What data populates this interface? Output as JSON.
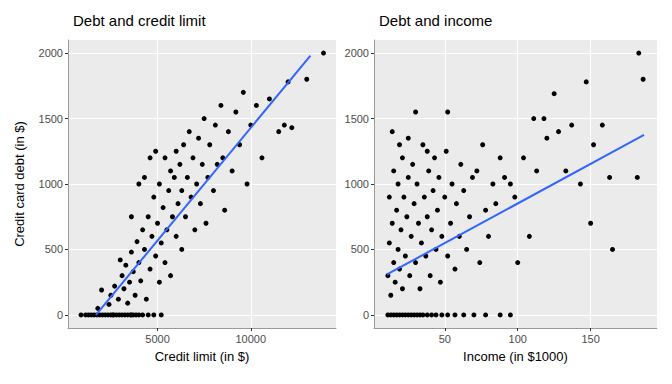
{
  "chart_data": [
    {
      "type": "scatter",
      "title": "Debt and credit limit",
      "x_label": "Credit limit (in $)",
      "y_label": "Credit card debt (in $)",
      "xlim": [
        200,
        14570
      ],
      "xticks": [
        5000,
        10000
      ],
      "ylim": [
        -100,
        2100
      ],
      "yticks": [
        0,
        500,
        1000,
        1500,
        2000
      ],
      "grid": true,
      "series": [
        {
          "type": "scatter",
          "color": "#000000",
          "marker": "circle",
          "values": [
            [
              900,
              0
            ],
            [
              1150,
              0
            ],
            [
              1300,
              0
            ],
            [
              1450,
              0
            ],
            [
              1600,
              0
            ],
            [
              1750,
              0
            ],
            [
              1900,
              0
            ],
            [
              2050,
              0
            ],
            [
              2200,
              0
            ],
            [
              2350,
              0
            ],
            [
              2500,
              0
            ],
            [
              2600,
              0
            ],
            [
              2650,
              0
            ],
            [
              2800,
              0
            ],
            [
              2950,
              0
            ],
            [
              3100,
              0
            ],
            [
              3250,
              0
            ],
            [
              3400,
              0
            ],
            [
              3550,
              0
            ],
            [
              3600,
              0
            ],
            [
              3700,
              0
            ],
            [
              3850,
              0
            ],
            [
              4000,
              0
            ],
            [
              4200,
              0
            ],
            [
              4500,
              0
            ],
            [
              4800,
              0
            ],
            [
              5200,
              0
            ],
            [
              1800,
              50
            ],
            [
              2000,
              190
            ],
            [
              2400,
              80
            ],
            [
              2500,
              150
            ],
            [
              2700,
              220
            ],
            [
              2900,
              120
            ],
            [
              3000,
              420
            ],
            [
              3100,
              300
            ],
            [
              3200,
              200
            ],
            [
              3300,
              380
            ],
            [
              3400,
              90
            ],
            [
              3500,
              250
            ],
            [
              3600,
              480
            ],
            [
              3600,
              750
            ],
            [
              3700,
              330
            ],
            [
              3800,
              150
            ],
            [
              3900,
              560
            ],
            [
              4000,
              400
            ],
            [
              4000,
              1000
            ],
            [
              4100,
              260
            ],
            [
              4200,
              650
            ],
            [
              4300,
              500
            ],
            [
              4300,
              1050
            ],
            [
              4400,
              120
            ],
            [
              4500,
              750
            ],
            [
              4600,
              350
            ],
            [
              4600,
              1200
            ],
            [
              4700,
              600
            ],
            [
              4800,
              900
            ],
            [
              4900,
              450
            ],
            [
              4900,
              1250
            ],
            [
              5000,
              700
            ],
            [
              5100,
              1000
            ],
            [
              5100,
              250
            ],
            [
              5200,
              550
            ],
            [
              5300,
              820
            ],
            [
              5400,
              1200
            ],
            [
              5400,
              400
            ],
            [
              5500,
              650
            ],
            [
              5600,
              950
            ],
            [
              5700,
              1100
            ],
            [
              5700,
              300
            ],
            [
              5800,
              750
            ],
            [
              5900,
              1050
            ],
            [
              6000,
              600
            ],
            [
              6000,
              1250
            ],
            [
              6100,
              850
            ],
            [
              6200,
              1150
            ],
            [
              6300,
              500
            ],
            [
              6300,
              950
            ],
            [
              6400,
              1300
            ],
            [
              6500,
              750
            ],
            [
              6600,
              1050
            ],
            [
              6700,
              1400
            ],
            [
              6800,
              900
            ],
            [
              6900,
              1200
            ],
            [
              7000,
              650
            ],
            [
              7100,
              1000
            ],
            [
              7200,
              1350
            ],
            [
              7300,
              850
            ],
            [
              7400,
              1150
            ],
            [
              7500,
              1500
            ],
            [
              7600,
              700
            ],
            [
              7700,
              1050
            ],
            [
              7800,
              1300
            ],
            [
              8000,
              950
            ],
            [
              8100,
              1450
            ],
            [
              8200,
              1150
            ],
            [
              8400,
              1600
            ],
            [
              8500,
              1200
            ],
            [
              8600,
              800
            ],
            [
              8800,
              1400
            ],
            [
              9000,
              1100
            ],
            [
              9200,
              1550
            ],
            [
              9400,
              1300
            ],
            [
              9600,
              1700
            ],
            [
              9800,
              1000
            ],
            [
              10000,
              1450
            ],
            [
              10300,
              1600
            ],
            [
              10600,
              1200
            ],
            [
              11000,
              1650
            ],
            [
              11500,
              1400
            ],
            [
              11800,
              1450
            ],
            [
              12000,
              1780
            ],
            [
              12200,
              1430
            ],
            [
              13000,
              1800
            ],
            [
              13900,
              2000
            ]
          ]
        },
        {
          "type": "line",
          "color": "#3366FF",
          "line_style": "solid",
          "values": [
            [
              1700,
              0
            ],
            [
              13200,
              1980
            ]
          ]
        }
      ]
    },
    {
      "type": "scatter",
      "title": "Debt and income",
      "x_label": "Income (in $1000)",
      "xlim": [
        1.5,
        195.5
      ],
      "xticks": [
        50,
        100,
        150
      ],
      "ylim": [
        -100,
        2100
      ],
      "yticks": [
        0,
        500,
        1000,
        1500,
        2000
      ],
      "grid": true,
      "series": [
        {
          "type": "scatter",
          "color": "#000000",
          "marker": "circle",
          "values": [
            [
              11,
              0
            ],
            [
              13,
              0
            ],
            [
              15,
              0
            ],
            [
              17,
              0
            ],
            [
              19,
              0
            ],
            [
              21,
              0
            ],
            [
              23,
              0
            ],
            [
              25,
              0
            ],
            [
              27,
              0
            ],
            [
              29,
              0
            ],
            [
              31,
              0
            ],
            [
              33,
              0
            ],
            [
              35,
              0
            ],
            [
              38,
              0
            ],
            [
              41,
              0
            ],
            [
              44,
              0
            ],
            [
              48,
              0
            ],
            [
              52,
              0
            ],
            [
              57,
              0
            ],
            [
              63,
              0
            ],
            [
              70,
              0
            ],
            [
              78,
              0
            ],
            [
              88,
              0
            ],
            [
              95,
              0
            ],
            [
              11,
              300
            ],
            [
              12,
              550
            ],
            [
              12,
              900
            ],
            [
              13,
              150
            ],
            [
              14,
              700
            ],
            [
              14,
              1400
            ],
            [
              15,
              1100
            ],
            [
              15,
              400
            ],
            [
              16,
              250
            ],
            [
              17,
              800
            ],
            [
              18,
              1000
            ],
            [
              18,
              500
            ],
            [
              19,
              350
            ],
            [
              19,
              1300
            ],
            [
              20,
              650
            ],
            [
              21,
              1200
            ],
            [
              21,
              200
            ],
            [
              22,
              900
            ],
            [
              23,
              450
            ],
            [
              24,
              750
            ],
            [
              25,
              1050
            ],
            [
              25,
              1350
            ],
            [
              26,
              300
            ],
            [
              27,
              600
            ],
            [
              28,
              1150
            ],
            [
              29,
              850
            ],
            [
              30,
              400
            ],
            [
              30,
              1550
            ],
            [
              31,
              1000
            ],
            [
              32,
              700
            ],
            [
              33,
              200
            ],
            [
              34,
              550
            ],
            [
              35,
              1300
            ],
            [
              36,
              900
            ],
            [
              37,
              450
            ],
            [
              38,
              750
            ],
            [
              38,
              1250
            ],
            [
              39,
              1100
            ],
            [
              40,
              300
            ],
            [
              41,
              650
            ],
            [
              42,
              950
            ],
            [
              43,
              1200
            ],
            [
              44,
              500
            ],
            [
              45,
              800
            ],
            [
              46,
              1050
            ],
            [
              47,
              250
            ],
            [
              48,
              600
            ],
            [
              50,
              900
            ],
            [
              51,
              1250
            ],
            [
              52,
              450
            ],
            [
              52,
              1550
            ],
            [
              54,
              700
            ],
            [
              55,
              1000
            ],
            [
              57,
              350
            ],
            [
              58,
              850
            ],
            [
              60,
              600
            ],
            [
              61,
              1150
            ],
            [
              63,
              950
            ],
            [
              65,
              500
            ],
            [
              67,
              750
            ],
            [
              69,
              1050
            ],
            [
              72,
              1100
            ],
            [
              74,
              400
            ],
            [
              76,
              1300
            ],
            [
              78,
              800
            ],
            [
              80,
              600
            ],
            [
              83,
              1000
            ],
            [
              85,
              850
            ],
            [
              88,
              1200
            ],
            [
              91,
              1050
            ],
            [
              95,
              1000
            ],
            [
              98,
              900
            ],
            [
              100,
              400
            ],
            [
              104,
              1200
            ],
            [
              108,
              600
            ],
            [
              111,
              1500
            ],
            [
              113,
              1100
            ],
            [
              118,
              1500
            ],
            [
              120,
              1350
            ],
            [
              125,
              1690
            ],
            [
              128,
              1400
            ],
            [
              133,
              1100
            ],
            [
              137,
              1450
            ],
            [
              143,
              1000
            ],
            [
              147,
              1780
            ],
            [
              150,
              700
            ],
            [
              152,
              1300
            ],
            [
              158,
              1450
            ],
            [
              163,
              1050
            ],
            [
              165,
              500
            ],
            [
              182,
              1050
            ],
            [
              183,
              2000
            ],
            [
              186,
              1800
            ]
          ]
        },
        {
          "type": "line",
          "color": "#3366FF",
          "line_style": "solid",
          "values": [
            [
              10.4,
              309
            ],
            [
              186.6,
              1375
            ]
          ]
        }
      ]
    }
  ]
}
